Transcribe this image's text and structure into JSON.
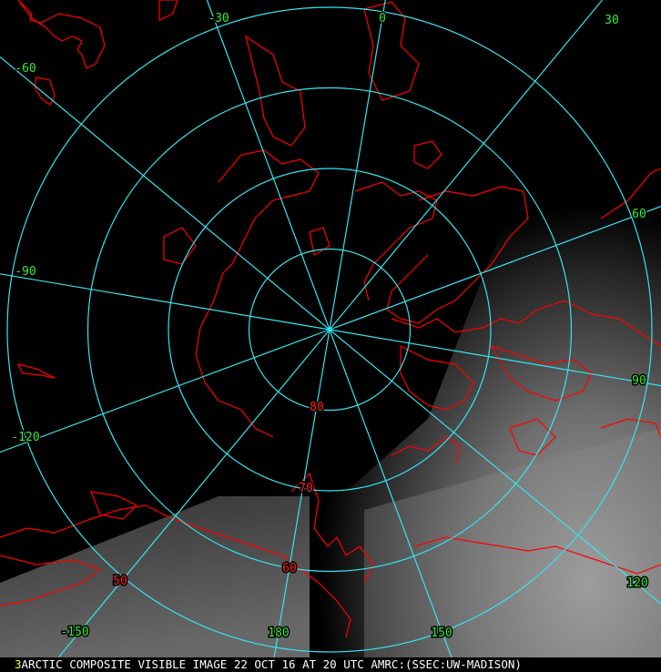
{
  "map": {
    "caption_frame": "3",
    "caption": "ARCTIC COMPOSITE VISIBLE IMAGE 22 OCT 16 AT 20 UTC AMRC:(SSEC:UW-MADISON)",
    "projection": "north polar stereographic",
    "colors": {
      "graticule": "#33e6f0",
      "coastline": "#ff0000",
      "lon_label": "#33ee33",
      "lat_label": "#ff2020",
      "frame_number": "#ffff00"
    },
    "latitudes": [
      80,
      70,
      60,
      50
    ],
    "lat_labels": [
      "80",
      "70",
      "60",
      "50"
    ],
    "longitudes": [
      -150,
      -120,
      -90,
      -60,
      -30,
      0,
      30,
      60,
      90,
      120,
      150,
      180
    ],
    "lon_labels": [
      "-150",
      "-120",
      "-90",
      "-60",
      "-30",
      "0",
      "30",
      "60",
      "90",
      "120",
      "150",
      "180"
    ]
  }
}
